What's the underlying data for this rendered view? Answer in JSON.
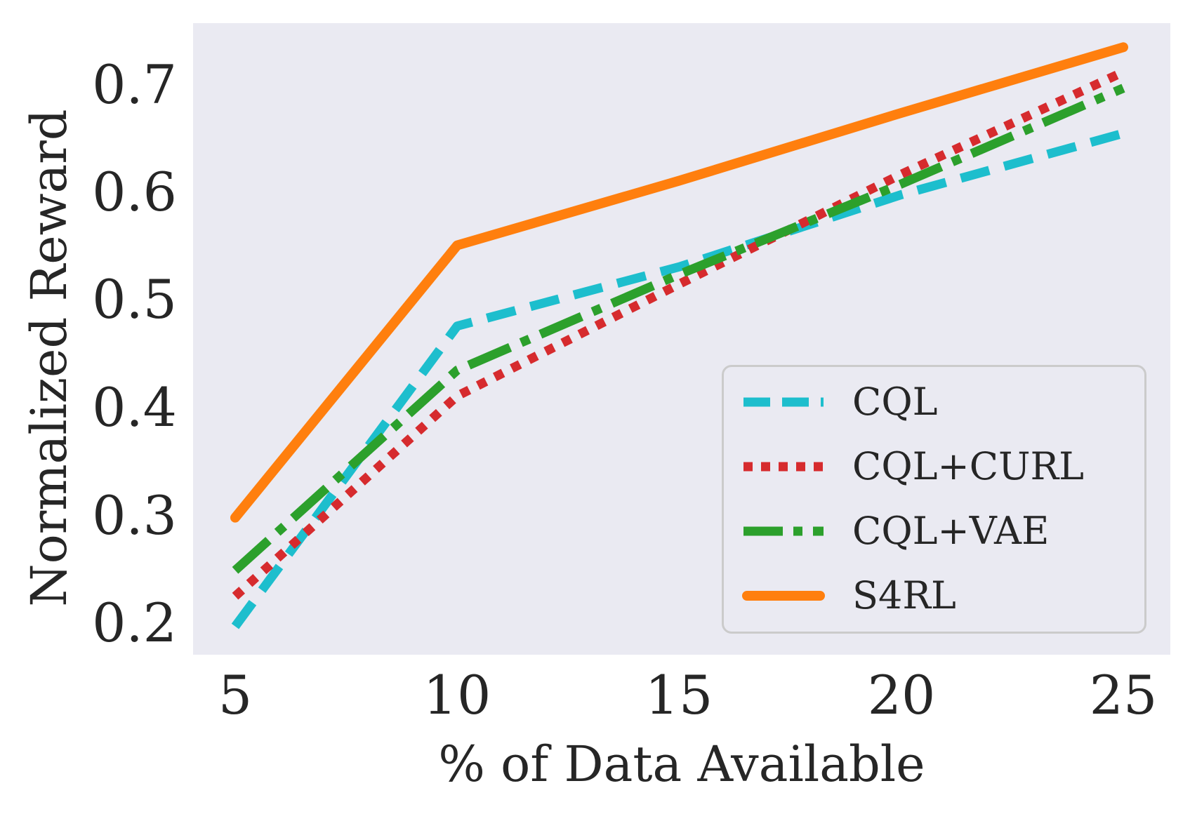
{
  "chart_data": {
    "type": "line",
    "x": [
      5,
      10,
      15,
      20,
      25
    ],
    "series": [
      {
        "name": "CQL",
        "color": "#1dbecd",
        "style": "dashed",
        "values": [
          0.197,
          0.476,
          0.531,
          0.598,
          0.655
        ]
      },
      {
        "name": "CQL+CURL",
        "color": "#d62b2e",
        "style": "dotted",
        "values": [
          0.225,
          0.411,
          0.515,
          0.617,
          0.712
        ]
      },
      {
        "name": "CQL+VAE",
        "color": "#2ca02c",
        "style": "dashdot",
        "values": [
          0.249,
          0.435,
          0.524,
          0.608,
          0.697
        ]
      },
      {
        "name": "S4RL",
        "color": "#ff7f0e",
        "style": "solid",
        "values": [
          0.298,
          0.551,
          0.611,
          0.674,
          0.735
        ]
      }
    ],
    "title": "",
    "xlabel": "% of Data Available",
    "ylabel": "Normalized Reward",
    "x_tick_labels": [
      "5",
      "10",
      "15",
      "20",
      "25"
    ],
    "y_tick_labels": [
      "0.7",
      "0.6",
      "0.5",
      "0.4",
      "0.3",
      "0.2"
    ],
    "xlim": [
      4.05,
      26.05
    ],
    "ylim": [
      0.171,
      0.757
    ],
    "grid": false,
    "legend_position": "lower right",
    "plot_background": "#eaeaf2",
    "text_color": "#262626"
  }
}
